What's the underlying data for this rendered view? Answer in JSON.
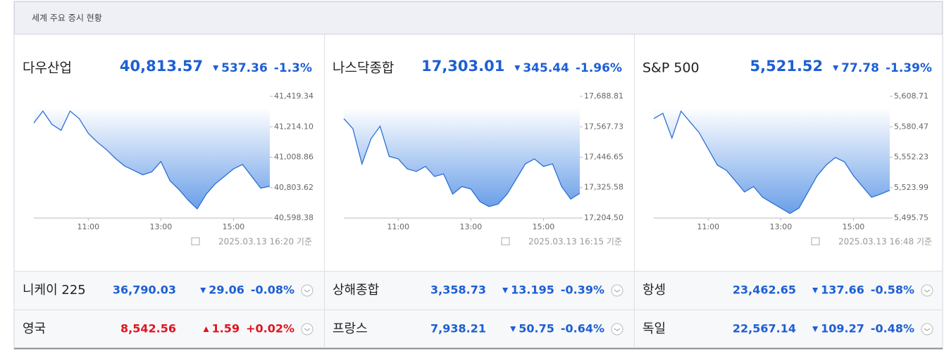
{
  "header": {
    "title": "세계 주요 증시 현황"
  },
  "panels": [
    {
      "name": "다우산업",
      "price": "40,813.57",
      "change": "537.36",
      "change_pct": "-1.3%",
      "updated": "2025.03.13 16:20 기준",
      "direction": "down"
    },
    {
      "name": "나스닥종합",
      "price": "17,303.01",
      "change": "345.44",
      "change_pct": "-1.96%",
      "updated": "2025.03.13 16:15 기준",
      "direction": "down"
    },
    {
      "name": "S&P 500",
      "price": "5,521.52",
      "change": "77.78",
      "change_pct": "-1.39%",
      "updated": "2025.03.13 16:48 기준",
      "direction": "down"
    }
  ],
  "chart_data": [
    {
      "type": "area",
      "color": "#2b6fd6",
      "x": [
        9.5,
        9.75,
        10,
        10.25,
        10.5,
        10.75,
        11,
        11.25,
        11.5,
        11.75,
        12,
        12.25,
        12.5,
        12.75,
        13,
        13.25,
        13.5,
        13.75,
        14,
        14.25,
        14.5,
        14.75,
        15,
        15.25,
        15.5,
        15.75,
        16
      ],
      "values": [
        41240,
        41320,
        41230,
        41190,
        41320,
        41270,
        41170,
        41110,
        41060,
        41000,
        40950,
        40920,
        40890,
        40910,
        40980,
        40850,
        40790,
        40720,
        40660,
        40760,
        40830,
        40880,
        40930,
        40960,
        40880,
        40800,
        40813.57
      ],
      "xlim": [
        9.5,
        16
      ],
      "ylim": [
        40598.38,
        41419.34
      ],
      "xticks": [
        {
          "value": 11,
          "label": "11:00"
        },
        {
          "value": 13,
          "label": "13:00"
        },
        {
          "value": 15,
          "label": "15:00"
        }
      ],
      "yticks": [
        {
          "value": 40598.38,
          "label": "40,598.38"
        },
        {
          "value": 40803.62,
          "label": "40,803.62"
        },
        {
          "value": 41008.86,
          "label": "41,008.86"
        },
        {
          "value": 41214.1,
          "label": "41,214.10"
        },
        {
          "value": 41419.34,
          "label": "41,419.34"
        }
      ]
    },
    {
      "type": "area",
      "color": "#2b6fd6",
      "x": [
        9.5,
        9.75,
        10,
        10.25,
        10.5,
        10.75,
        11,
        11.25,
        11.5,
        11.75,
        12,
        12.25,
        12.5,
        12.75,
        13,
        13.25,
        13.5,
        13.75,
        14,
        14.25,
        14.5,
        14.75,
        15,
        15.25,
        15.5,
        15.75,
        16
      ],
      "values": [
        17600,
        17560,
        17420,
        17520,
        17570,
        17450,
        17440,
        17400,
        17390,
        17410,
        17370,
        17380,
        17300,
        17330,
        17320,
        17270,
        17250,
        17260,
        17300,
        17360,
        17420,
        17440,
        17410,
        17420,
        17330,
        17280,
        17303.01
      ],
      "xlim": [
        9.5,
        16
      ],
      "ylim": [
        17204.5,
        17688.81
      ],
      "xticks": [
        {
          "value": 11,
          "label": "11:00"
        },
        {
          "value": 13,
          "label": "13:00"
        },
        {
          "value": 15,
          "label": "15:00"
        }
      ],
      "yticks": [
        {
          "value": 17204.5,
          "label": "17,204.50"
        },
        {
          "value": 17325.58,
          "label": "17,325.58"
        },
        {
          "value": 17446.65,
          "label": "17,446.65"
        },
        {
          "value": 17567.73,
          "label": "17,567.73"
        },
        {
          "value": 17688.81,
          "label": "17,688.81"
        }
      ]
    },
    {
      "type": "area",
      "color": "#2b6fd6",
      "x": [
        9.5,
        9.75,
        10,
        10.25,
        10.5,
        10.75,
        11,
        11.25,
        11.5,
        11.75,
        12,
        12.25,
        12.5,
        12.75,
        13,
        13.25,
        13.5,
        13.75,
        14,
        14.25,
        14.5,
        14.75,
        15,
        15.25,
        15.5,
        15.75,
        16
      ],
      "values": [
        5588,
        5593,
        5570,
        5595,
        5585,
        5575,
        5560,
        5545,
        5540,
        5530,
        5520,
        5525,
        5515,
        5510,
        5505,
        5500,
        5505,
        5520,
        5535,
        5545,
        5552,
        5548,
        5535,
        5525,
        5515,
        5518,
        5521.52
      ],
      "xlim": [
        9.5,
        16
      ],
      "ylim": [
        5495.75,
        5608.71
      ],
      "xticks": [
        {
          "value": 11,
          "label": "11:00"
        },
        {
          "value": 13,
          "label": "13:00"
        },
        {
          "value": 15,
          "label": "15:00"
        }
      ],
      "yticks": [
        {
          "value": 5495.75,
          "label": "5,495.75"
        },
        {
          "value": 5523.99,
          "label": "5,523.99"
        },
        {
          "value": 5552.23,
          "label": "5,552.23"
        },
        {
          "value": 5580.47,
          "label": "5,580.47"
        },
        {
          "value": 5608.71,
          "label": "5,608.71"
        }
      ]
    }
  ],
  "indices": [
    {
      "name": "니케이 225",
      "price": "36,790.03",
      "change": "29.06",
      "change_pct": "-0.08%",
      "direction": "down"
    },
    {
      "name": "상해종합",
      "price": "3,358.73",
      "change": "13.195",
      "change_pct": "-0.39%",
      "direction": "down"
    },
    {
      "name": "항셍",
      "price": "23,462.65",
      "change": "137.66",
      "change_pct": "-0.58%",
      "direction": "down"
    },
    {
      "name": "영국",
      "price": "8,542.56",
      "change": "1.59",
      "change_pct": "+0.02%",
      "direction": "up"
    },
    {
      "name": "프랑스",
      "price": "7,938.21",
      "change": "50.75",
      "change_pct": "-0.64%",
      "direction": "down"
    },
    {
      "name": "독일",
      "price": "22,567.14",
      "change": "109.27",
      "change_pct": "-0.48%",
      "direction": "down"
    }
  ]
}
